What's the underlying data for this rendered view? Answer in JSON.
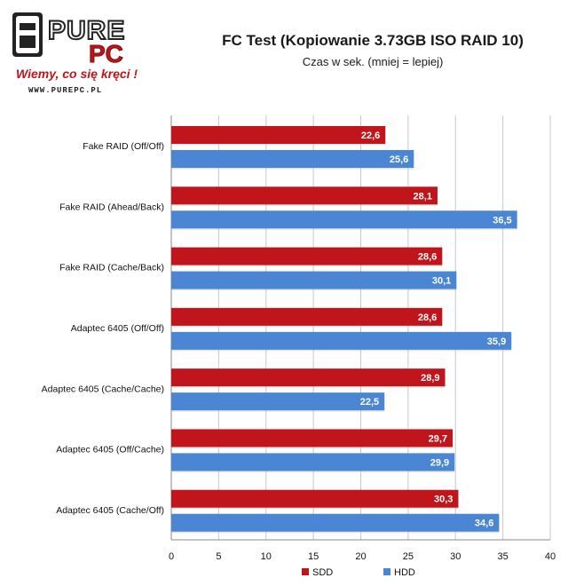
{
  "logo": {
    "brand_pure": "PURE",
    "brand_pc": "PC",
    "slogan": "Wiemy, co się kręci !",
    "url": "WWW.PUREPC.PL"
  },
  "chart_data": {
    "type": "bar",
    "orientation": "horizontal",
    "title": "FC Test (Kopiowanie 3.73GB ISO RAID 10)",
    "subtitle": "Czas w sek.  (mniej = lepiej)",
    "categories": [
      "Fake RAID (Off/Off)",
      "Fake RAID (Ahead/Back)",
      "Fake RAID (Cache/Back)",
      "Adaptec 6405  (Off/Off)",
      "Adaptec 6405  (Cache/Cache)",
      "Adaptec 6405  (Off/Cache)",
      "Adaptec 6405  (Cache/Off)"
    ],
    "series": [
      {
        "name": "SDD",
        "color": "#c0151b",
        "values": [
          22.6,
          28.1,
          28.6,
          28.6,
          28.9,
          29.7,
          30.3
        ],
        "labels": [
          "22,6",
          "28,1",
          "28,6",
          "28,6",
          "28,9",
          "29,7",
          "30,3"
        ]
      },
      {
        "name": "HDD",
        "color": "#4a86d4",
        "values": [
          25.6,
          36.5,
          30.1,
          35.9,
          22.5,
          29.9,
          34.6
        ],
        "labels": [
          "25,6",
          "36,5",
          "30,1",
          "35,9",
          "22,5",
          "29,9",
          "34,6"
        ]
      }
    ],
    "xlim": [
      0,
      40
    ],
    "xticks": [
      0,
      5,
      10,
      15,
      20,
      25,
      30,
      35,
      40
    ],
    "grid": true,
    "legend_position": "bottom"
  }
}
